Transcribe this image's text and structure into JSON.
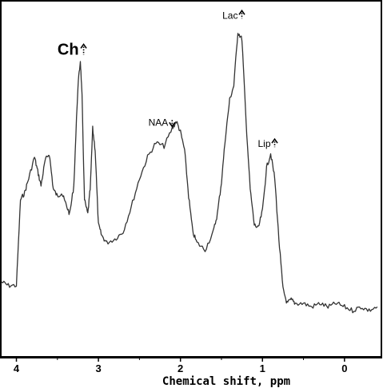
{
  "chart_data": {
    "type": "line",
    "title": "",
    "xlabel": "Chemical shift, ppm",
    "ylabel": "",
    "x_axis": {
      "range": [
        4.2,
        -0.45
      ],
      "reversed": true,
      "ticks": [
        4,
        3,
        2,
        1,
        0
      ],
      "tick_labels": [
        "4",
        "3",
        "2",
        "1",
        "0"
      ]
    },
    "y_axis": {
      "range": [
        0,
        1
      ],
      "visible": false
    },
    "grid": false,
    "legend": "none",
    "colors": {
      "line": "#333333",
      "frame": "#000000",
      "text": "#000000",
      "background": "#ffffff"
    },
    "annotations": [
      {
        "label": "Ch",
        "arrow": "up",
        "arrow_style": "dotted",
        "x": 3.2,
        "y": 0.82,
        "emphasis": "large"
      },
      {
        "label": "NAA",
        "arrow": "down",
        "arrow_style": "dotted",
        "x": 2.15,
        "y": 0.63
      },
      {
        "label": "Lac",
        "arrow": "up",
        "arrow_style": "dotted",
        "x": 1.3,
        "y": 0.93
      },
      {
        "label": "Lip",
        "arrow": "up",
        "arrow_style": "dotted",
        "x": 0.9,
        "y": 0.57
      }
    ],
    "series": [
      {
        "x": [
          4.18,
          4.1,
          4.0,
          3.95,
          3.9,
          3.85,
          3.78,
          3.74,
          3.7,
          3.65,
          3.6,
          3.55,
          3.5,
          3.45,
          3.4,
          3.35,
          3.3,
          3.25,
          3.22,
          3.2,
          3.17,
          3.13,
          3.1,
          3.07,
          3.04,
          3.0,
          2.96,
          2.9,
          2.8,
          2.7,
          2.6,
          2.5,
          2.4,
          2.3,
          2.2,
          2.1,
          2.05,
          2.0,
          1.95,
          1.9,
          1.85,
          1.8,
          1.7,
          1.6,
          1.55,
          1.5,
          1.45,
          1.4,
          1.35,
          1.3,
          1.25,
          1.2,
          1.15,
          1.1,
          1.05,
          1.0,
          0.95,
          0.9,
          0.85,
          0.8,
          0.75,
          0.7,
          0.65,
          0.6,
          0.5,
          0.4,
          0.3,
          0.2,
          0.1,
          0.0,
          -0.1,
          -0.2,
          -0.3,
          -0.4
        ],
        "y": [
          0.21,
          0.2,
          0.2,
          0.44,
          0.46,
          0.5,
          0.56,
          0.52,
          0.48,
          0.55,
          0.57,
          0.47,
          0.45,
          0.46,
          0.43,
          0.4,
          0.48,
          0.76,
          0.83,
          0.73,
          0.44,
          0.4,
          0.47,
          0.64,
          0.58,
          0.37,
          0.34,
          0.32,
          0.33,
          0.35,
          0.42,
          0.5,
          0.56,
          0.6,
          0.59,
          0.64,
          0.66,
          0.63,
          0.58,
          0.45,
          0.35,
          0.32,
          0.3,
          0.35,
          0.4,
          0.49,
          0.62,
          0.72,
          0.76,
          0.91,
          0.89,
          0.66,
          0.47,
          0.37,
          0.36,
          0.41,
          0.53,
          0.57,
          0.5,
          0.33,
          0.19,
          0.15,
          0.16,
          0.15,
          0.15,
          0.14,
          0.15,
          0.14,
          0.15,
          0.14,
          0.13,
          0.14,
          0.13,
          0.14
        ]
      }
    ]
  }
}
